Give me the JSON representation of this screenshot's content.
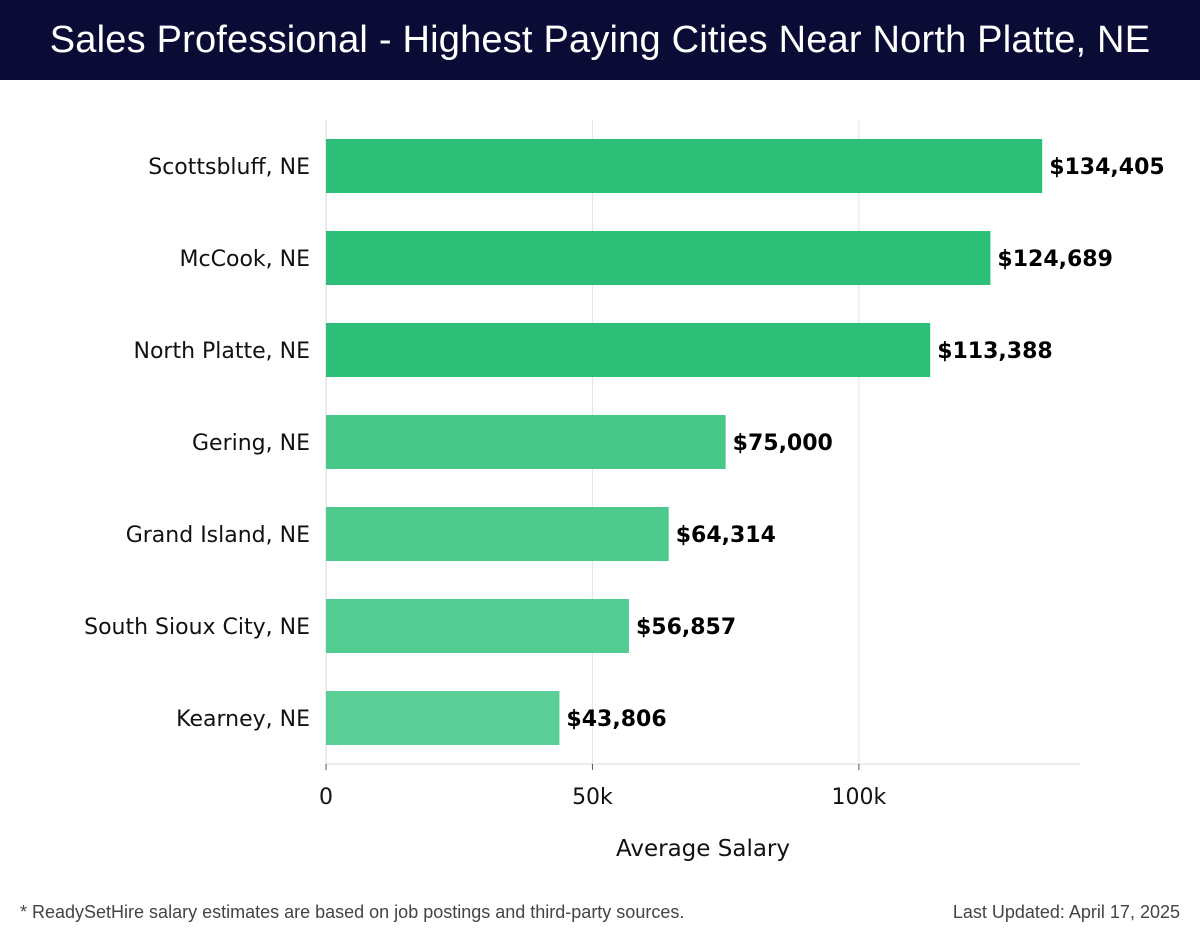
{
  "header": {
    "title": "Sales Professional - Highest Paying Cities Near North Platte, NE"
  },
  "chart_data": {
    "type": "bar",
    "orientation": "horizontal",
    "title": "Sales Professional - Highest Paying Cities Near North Platte, NE",
    "categories": [
      "Scottsbluff, NE",
      "McCook, NE",
      "North Platte, NE",
      "Gering, NE",
      "Grand Island, NE",
      "South Sioux City, NE",
      "Kearney, NE"
    ],
    "values": [
      134405,
      124689,
      113388,
      75000,
      64314,
      56857,
      43806
    ],
    "value_labels": [
      "$134,405",
      "$124,689",
      "$113,388",
      "$75,000",
      "$64,314",
      "$56,857",
      "$43,806"
    ],
    "bar_colors": [
      "#2bbf78",
      "#2bbf78",
      "#2bbf78",
      "#48c78a",
      "#4fca8f",
      "#52cc93",
      "#5bce98"
    ],
    "xlabel": "Average Salary",
    "ylabel": "",
    "xlim": [
      0,
      141500
    ],
    "xticks": [
      0,
      50000,
      100000
    ],
    "xtick_labels": [
      "0",
      "50k",
      "100k"
    ],
    "grid": "vertical",
    "legend": "none"
  },
  "footer": {
    "note": "* ReadySetHire salary estimates are based on job postings and third-party sources.",
    "updated": "Last Updated: April 17, 2025"
  }
}
